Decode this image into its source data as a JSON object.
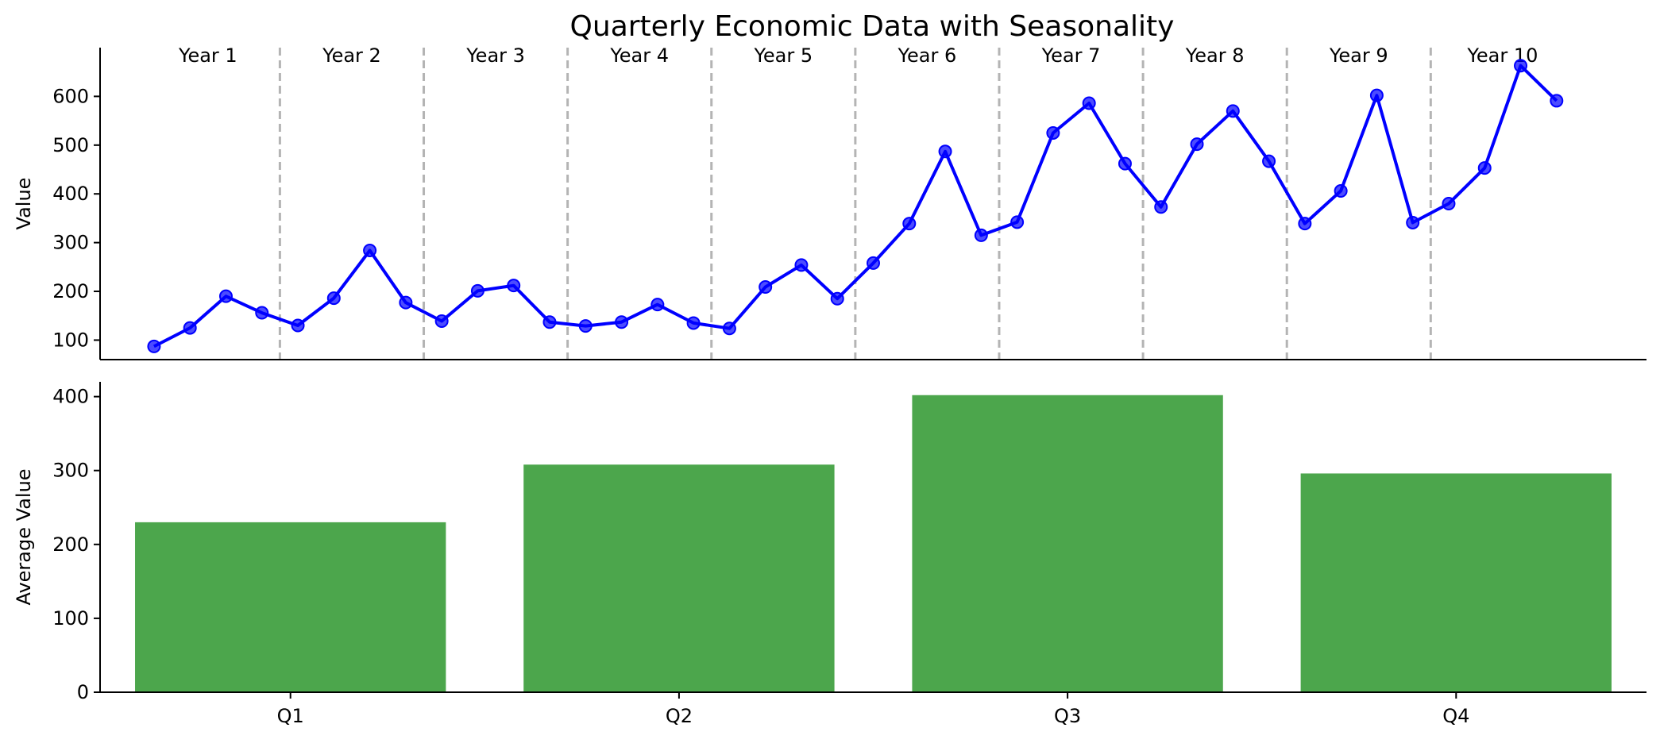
{
  "chart_data": [
    {
      "type": "line",
      "title": "Quarterly Economic Data with Seasonality",
      "xlabel": "",
      "ylabel": "Value",
      "ylim": [
        60,
        700
      ],
      "yticks": [
        100,
        200,
        300,
        400,
        500,
        600
      ],
      "period_labels": [
        "Year 1",
        "Year 2",
        "Year 3",
        "Year 4",
        "Year 5",
        "Year 6",
        "Year 7",
        "Year 8",
        "Year 9",
        "Year 10"
      ],
      "grid": false,
      "series": [
        {
          "color": "#0000ff",
          "values": [
            87,
            125,
            190,
            156,
            130,
            186,
            284,
            177,
            139,
            201,
            212,
            137,
            129,
            137,
            173,
            135,
            124,
            209,
            254,
            185,
            258,
            339,
            487,
            315,
            342,
            525,
            586,
            462,
            373,
            502,
            570,
            467,
            339,
            406,
            602,
            341,
            380,
            453,
            663,
            591
          ]
        }
      ]
    },
    {
      "type": "bar",
      "title": "",
      "xlabel": "",
      "ylabel": "Average Value",
      "categories": [
        "Q1",
        "Q2",
        "Q3",
        "Q4"
      ],
      "values": [
        230,
        308,
        402,
        296
      ],
      "ylim": [
        0,
        420
      ],
      "yticks": [
        0,
        100,
        200,
        300,
        400
      ],
      "color": "#4ca64c",
      "grid": false
    }
  ]
}
